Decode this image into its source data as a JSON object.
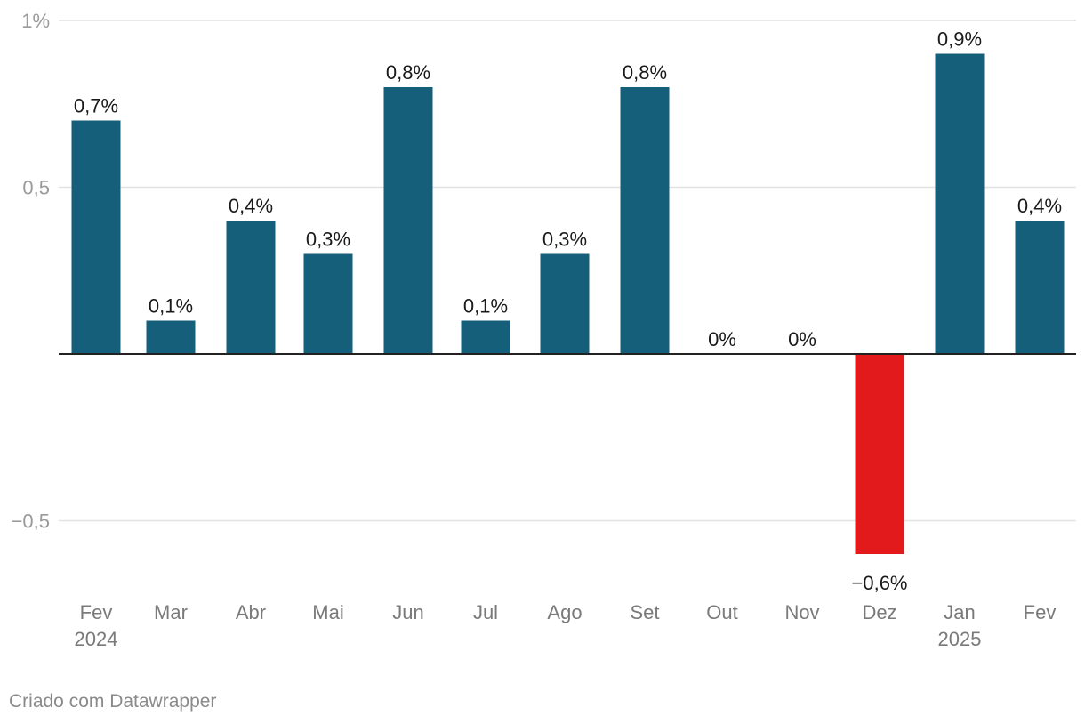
{
  "colors": {
    "positive": "#165f7a",
    "negative": "#e31a1c",
    "grid": "#e2e2e2",
    "baseline": "#222222"
  },
  "chart_data": {
    "type": "bar",
    "title": "",
    "xlabel": "",
    "ylabel": "",
    "ylim": [
      -0.72,
      1.0
    ],
    "y_ticks": [
      {
        "value": 1,
        "label": "1%"
      },
      {
        "value": 0.5,
        "label": "0,5"
      },
      {
        "value": -0.5,
        "label": "−0,5"
      }
    ],
    "grid": true,
    "categories": [
      {
        "label": "Fev",
        "year": "2024"
      },
      {
        "label": "Mar",
        "year": ""
      },
      {
        "label": "Abr",
        "year": ""
      },
      {
        "label": "Mai",
        "year": ""
      },
      {
        "label": "Jun",
        "year": ""
      },
      {
        "label": "Jul",
        "year": ""
      },
      {
        "label": "Ago",
        "year": ""
      },
      {
        "label": "Set",
        "year": ""
      },
      {
        "label": "Out",
        "year": ""
      },
      {
        "label": "Nov",
        "year": ""
      },
      {
        "label": "Dez",
        "year": ""
      },
      {
        "label": "Jan",
        "year": "2025"
      },
      {
        "label": "Fev",
        "year": ""
      }
    ],
    "values": [
      0.7,
      0.1,
      0.4,
      0.3,
      0.8,
      0.1,
      0.3,
      0.8,
      0,
      0,
      -0.6,
      0.9,
      0.4
    ],
    "value_labels": [
      "0,7%",
      "0,1%",
      "0,4%",
      "0,3%",
      "0,8%",
      "0,1%",
      "0,3%",
      "0,8%",
      "0%",
      "0%",
      "−0,6%",
      "0,9%",
      "0,4%"
    ]
  },
  "footer": {
    "credit": "Criado com Datawrapper"
  }
}
